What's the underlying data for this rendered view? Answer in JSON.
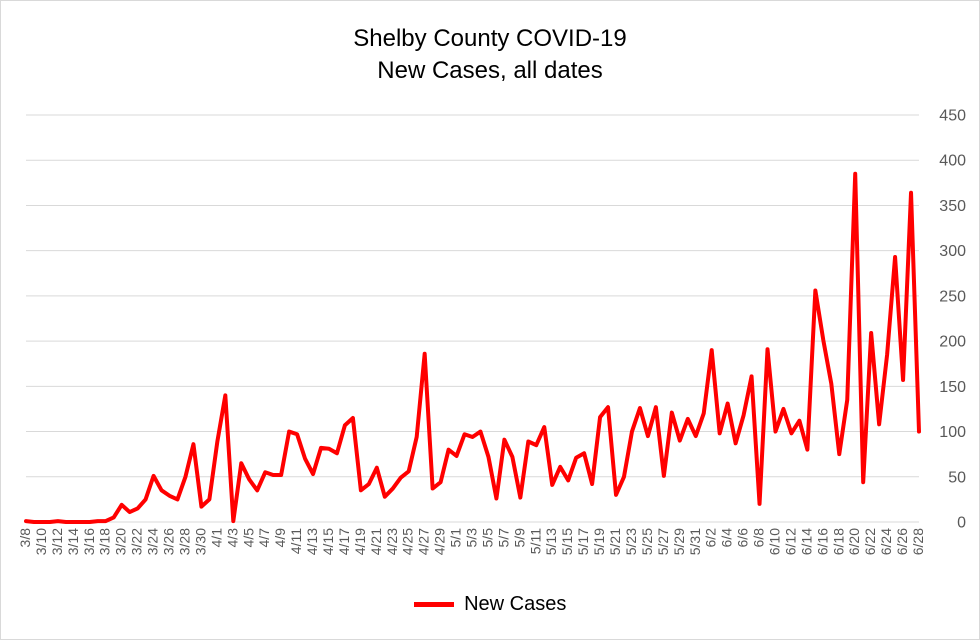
{
  "chart_data": {
    "type": "line",
    "title": "Shelby County COVID-19",
    "subtitle": "New Cases, all dates",
    "xlabel": "",
    "ylabel": "",
    "ylim": [
      0,
      450
    ],
    "yticks": [
      0,
      50,
      100,
      150,
      200,
      250,
      300,
      350,
      400,
      450
    ],
    "grid": true,
    "legend_position": "bottom",
    "x_tick_labels": [
      "3/8",
      "3/10",
      "3/12",
      "3/14",
      "3/16",
      "3/18",
      "3/20",
      "3/22",
      "3/24",
      "3/26",
      "3/28",
      "3/30",
      "4/1",
      "4/3",
      "4/5",
      "4/7",
      "4/9",
      "4/11",
      "4/13",
      "4/15",
      "4/17",
      "4/19",
      "4/21",
      "4/23",
      "4/25",
      "4/27",
      "4/29",
      "5/1",
      "5/3",
      "5/5",
      "5/7",
      "5/9",
      "5/11",
      "5/13",
      "5/15",
      "5/17",
      "5/19",
      "5/21",
      "5/23",
      "5/25",
      "5/27",
      "5/29",
      "5/31",
      "6/2",
      "6/4",
      "6/6",
      "6/8",
      "6/10",
      "6/12",
      "6/14",
      "6/16",
      "6/18",
      "6/20",
      "6/22",
      "6/24",
      "6/26",
      "6/28"
    ],
    "x": [
      "3/8",
      "3/9",
      "3/10",
      "3/11",
      "3/12",
      "3/13",
      "3/14",
      "3/15",
      "3/16",
      "3/17",
      "3/18",
      "3/19",
      "3/20",
      "3/21",
      "3/22",
      "3/23",
      "3/24",
      "3/25",
      "3/26",
      "3/27",
      "3/28",
      "3/29",
      "3/30",
      "3/31",
      "4/1",
      "4/2",
      "4/3",
      "4/4",
      "4/5",
      "4/6",
      "4/7",
      "4/8",
      "4/9",
      "4/10",
      "4/11",
      "4/12",
      "4/13",
      "4/14",
      "4/15",
      "4/16",
      "4/17",
      "4/18",
      "4/19",
      "4/20",
      "4/21",
      "4/22",
      "4/23",
      "4/24",
      "4/25",
      "4/26",
      "4/27",
      "4/28",
      "4/29",
      "4/30",
      "5/1",
      "5/2",
      "5/3",
      "5/4",
      "5/5",
      "5/6",
      "5/7",
      "5/8",
      "5/9",
      "5/10",
      "5/11",
      "5/12",
      "5/13",
      "5/14",
      "5/15",
      "5/16",
      "5/17",
      "5/18",
      "5/19",
      "5/20",
      "5/21",
      "5/22",
      "5/23",
      "5/24",
      "5/25",
      "5/26",
      "5/27",
      "5/28",
      "5/29",
      "5/30",
      "5/31",
      "6/1",
      "6/2",
      "6/3",
      "6/4",
      "6/5",
      "6/6",
      "6/7",
      "6/8",
      "6/9",
      "6/10",
      "6/11",
      "6/12",
      "6/13",
      "6/14",
      "6/15",
      "6/16",
      "6/17",
      "6/18",
      "6/19",
      "6/20",
      "6/21",
      "6/22",
      "6/23",
      "6/24",
      "6/25",
      "6/26",
      "6/27",
      "6/28"
    ],
    "series": [
      {
        "name": "New Cases",
        "color": "#ff0000",
        "values": [
          1,
          0,
          0,
          0,
          1,
          0,
          0,
          0,
          0,
          1,
          1,
          5,
          19,
          11,
          15,
          25,
          51,
          35,
          29,
          25,
          50,
          86,
          17,
          25,
          89,
          140,
          1,
          65,
          47,
          35,
          55,
          52,
          52,
          100,
          97,
          70,
          53,
          82,
          81,
          76,
          107,
          115,
          35,
          42,
          60,
          28,
          37,
          49,
          56,
          94,
          186,
          37,
          44,
          80,
          73,
          97,
          94,
          100,
          72,
          26,
          91,
          72,
          27,
          89,
          85,
          105,
          41,
          61,
          46,
          71,
          76,
          42,
          116,
          127,
          30,
          50,
          100,
          126,
          95,
          127,
          51,
          121,
          90,
          114,
          95,
          120,
          190,
          98,
          131,
          87,
          118,
          161,
          20,
          191,
          100,
          125,
          98,
          112,
          80,
          256,
          201,
          153,
          75,
          135,
          385,
          44,
          209,
          108,
          185,
          293,
          157,
          364,
          100
        ]
      }
    ]
  }
}
